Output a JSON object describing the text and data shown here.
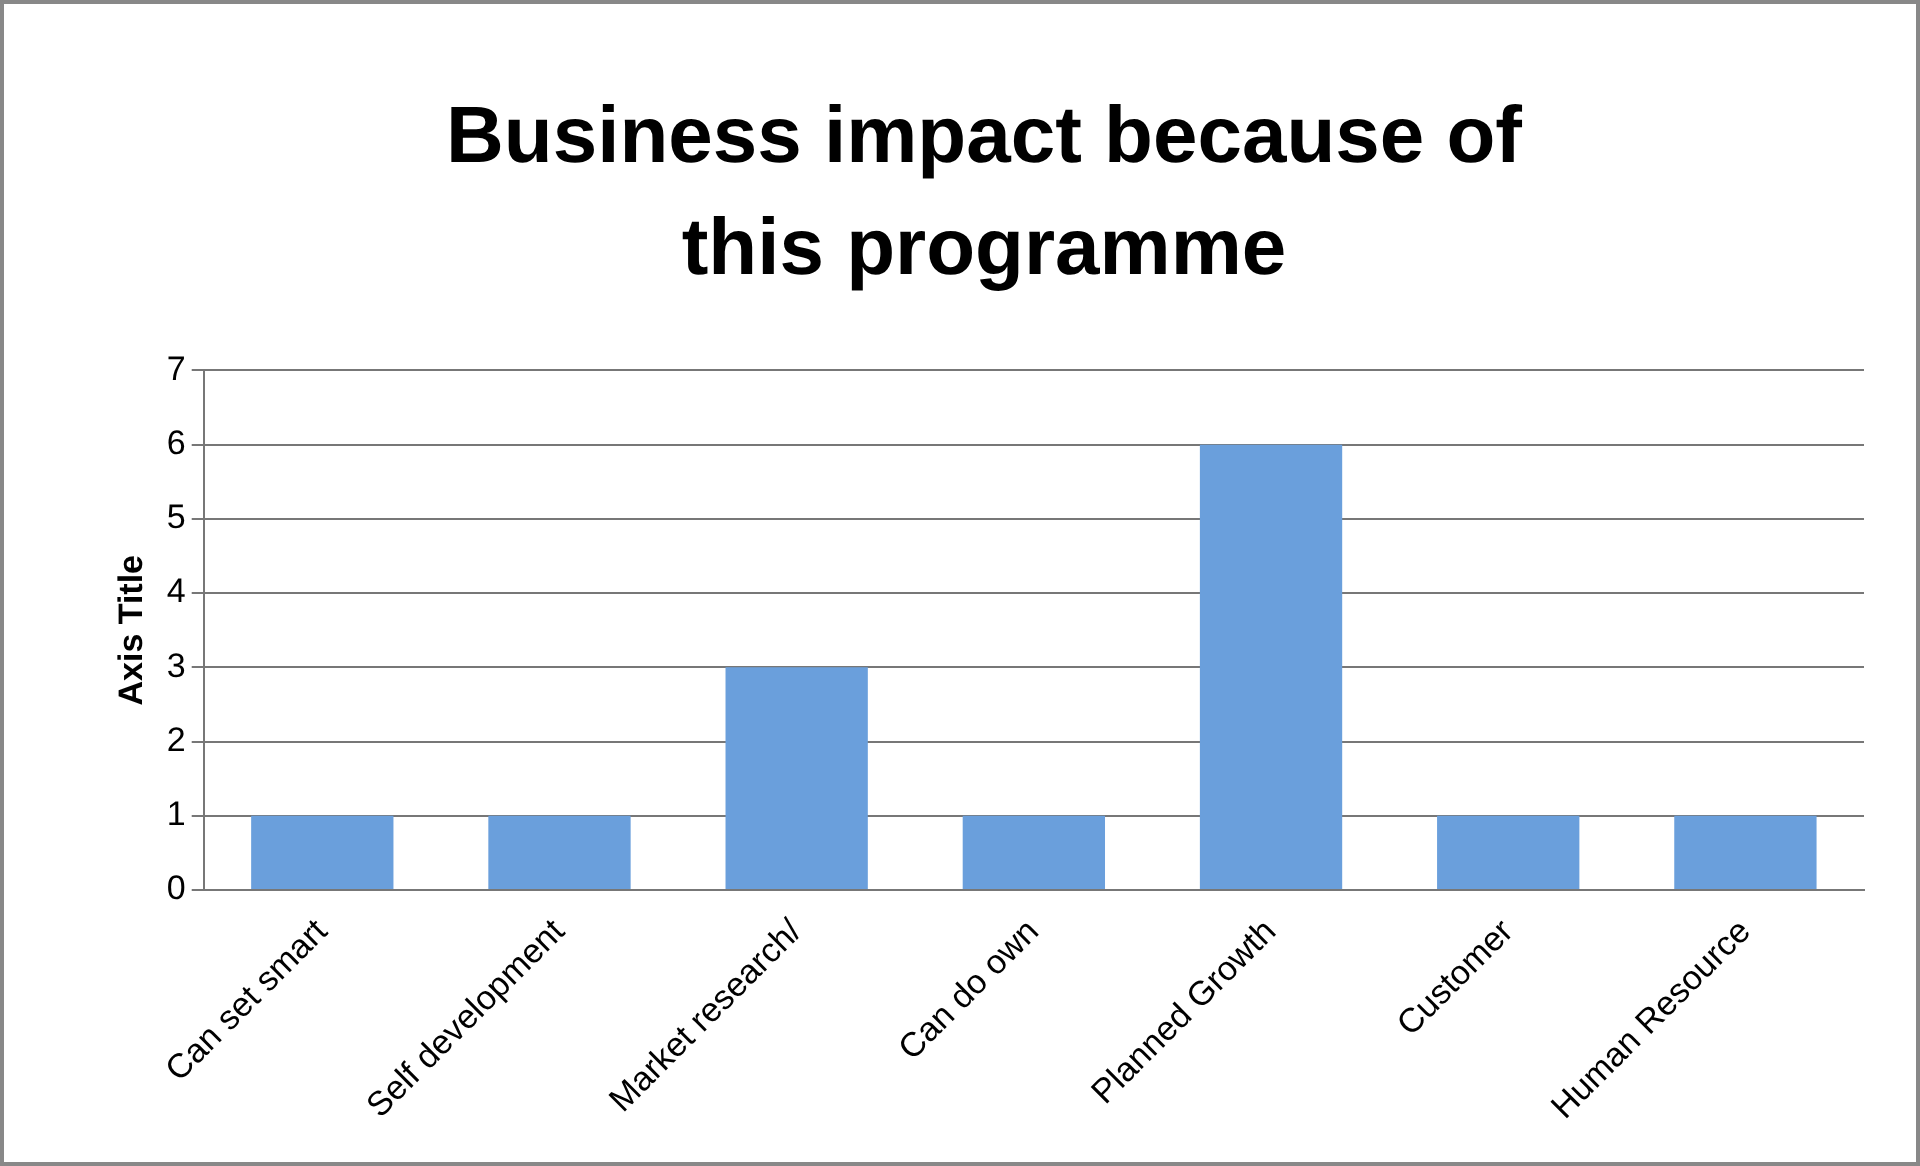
{
  "chart_data": {
    "type": "bar",
    "title": "Business impact because of this programme",
    "ylabel": "Axis Title",
    "categories": [
      "Can set smart",
      "Self development",
      "Market research/",
      "Can do own",
      "Planned Growth",
      "Customer",
      "Human Resource"
    ],
    "values": [
      1,
      1,
      3,
      1,
      6,
      1,
      1
    ],
    "color": "#6a9fdc",
    "ylim": [
      0,
      7
    ],
    "yticks": [
      0,
      1,
      2,
      3,
      4,
      5,
      6,
      7
    ],
    "grid": "y",
    "legend": false
  }
}
